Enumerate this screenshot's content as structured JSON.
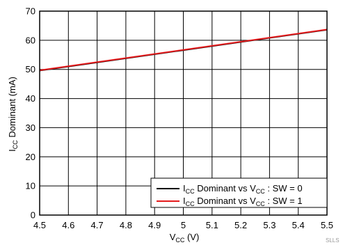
{
  "chart_data": {
    "type": "line",
    "xlabel": {
      "main": "V",
      "sub": "CC",
      "rest": " (V)"
    },
    "ylabel": {
      "main": "I",
      "sub": "CC",
      "rest": " Dominant (mA)"
    },
    "xlim": [
      4.5,
      5.5
    ],
    "ylim": [
      0,
      70
    ],
    "x_ticks": [
      "4.5",
      "4.6",
      "4.7",
      "4.8",
      "4.9",
      "5",
      "5.1",
      "5.2",
      "5.3",
      "5.4",
      "5.5"
    ],
    "y_ticks": [
      "0",
      "10",
      "20",
      "30",
      "40",
      "50",
      "60",
      "70"
    ],
    "grid": true,
    "legend_position": "bottom-right",
    "series": [
      {
        "name": "ICC Dominant vs VCC : SW = 0",
        "legend": {
          "p1": "I",
          "s1": "CC",
          "p2": " Dominant vs V",
          "s2": "CC",
          "p3": " : SW = 0"
        },
        "color": "#000000",
        "x": [
          4.5,
          5.5
        ],
        "y": [
          49.6,
          63.6
        ]
      },
      {
        "name": "ICC Dominant vs VCC : SW = 1",
        "legend": {
          "p1": "I",
          "s1": "CC",
          "p2": " Dominant vs V",
          "s2": "CC",
          "p3": " : SW = 1"
        },
        "color": "#e41a1c",
        "x": [
          4.5,
          5.5
        ],
        "y": [
          49.7,
          63.7
        ]
      }
    ]
  },
  "watermark": "SLLS"
}
